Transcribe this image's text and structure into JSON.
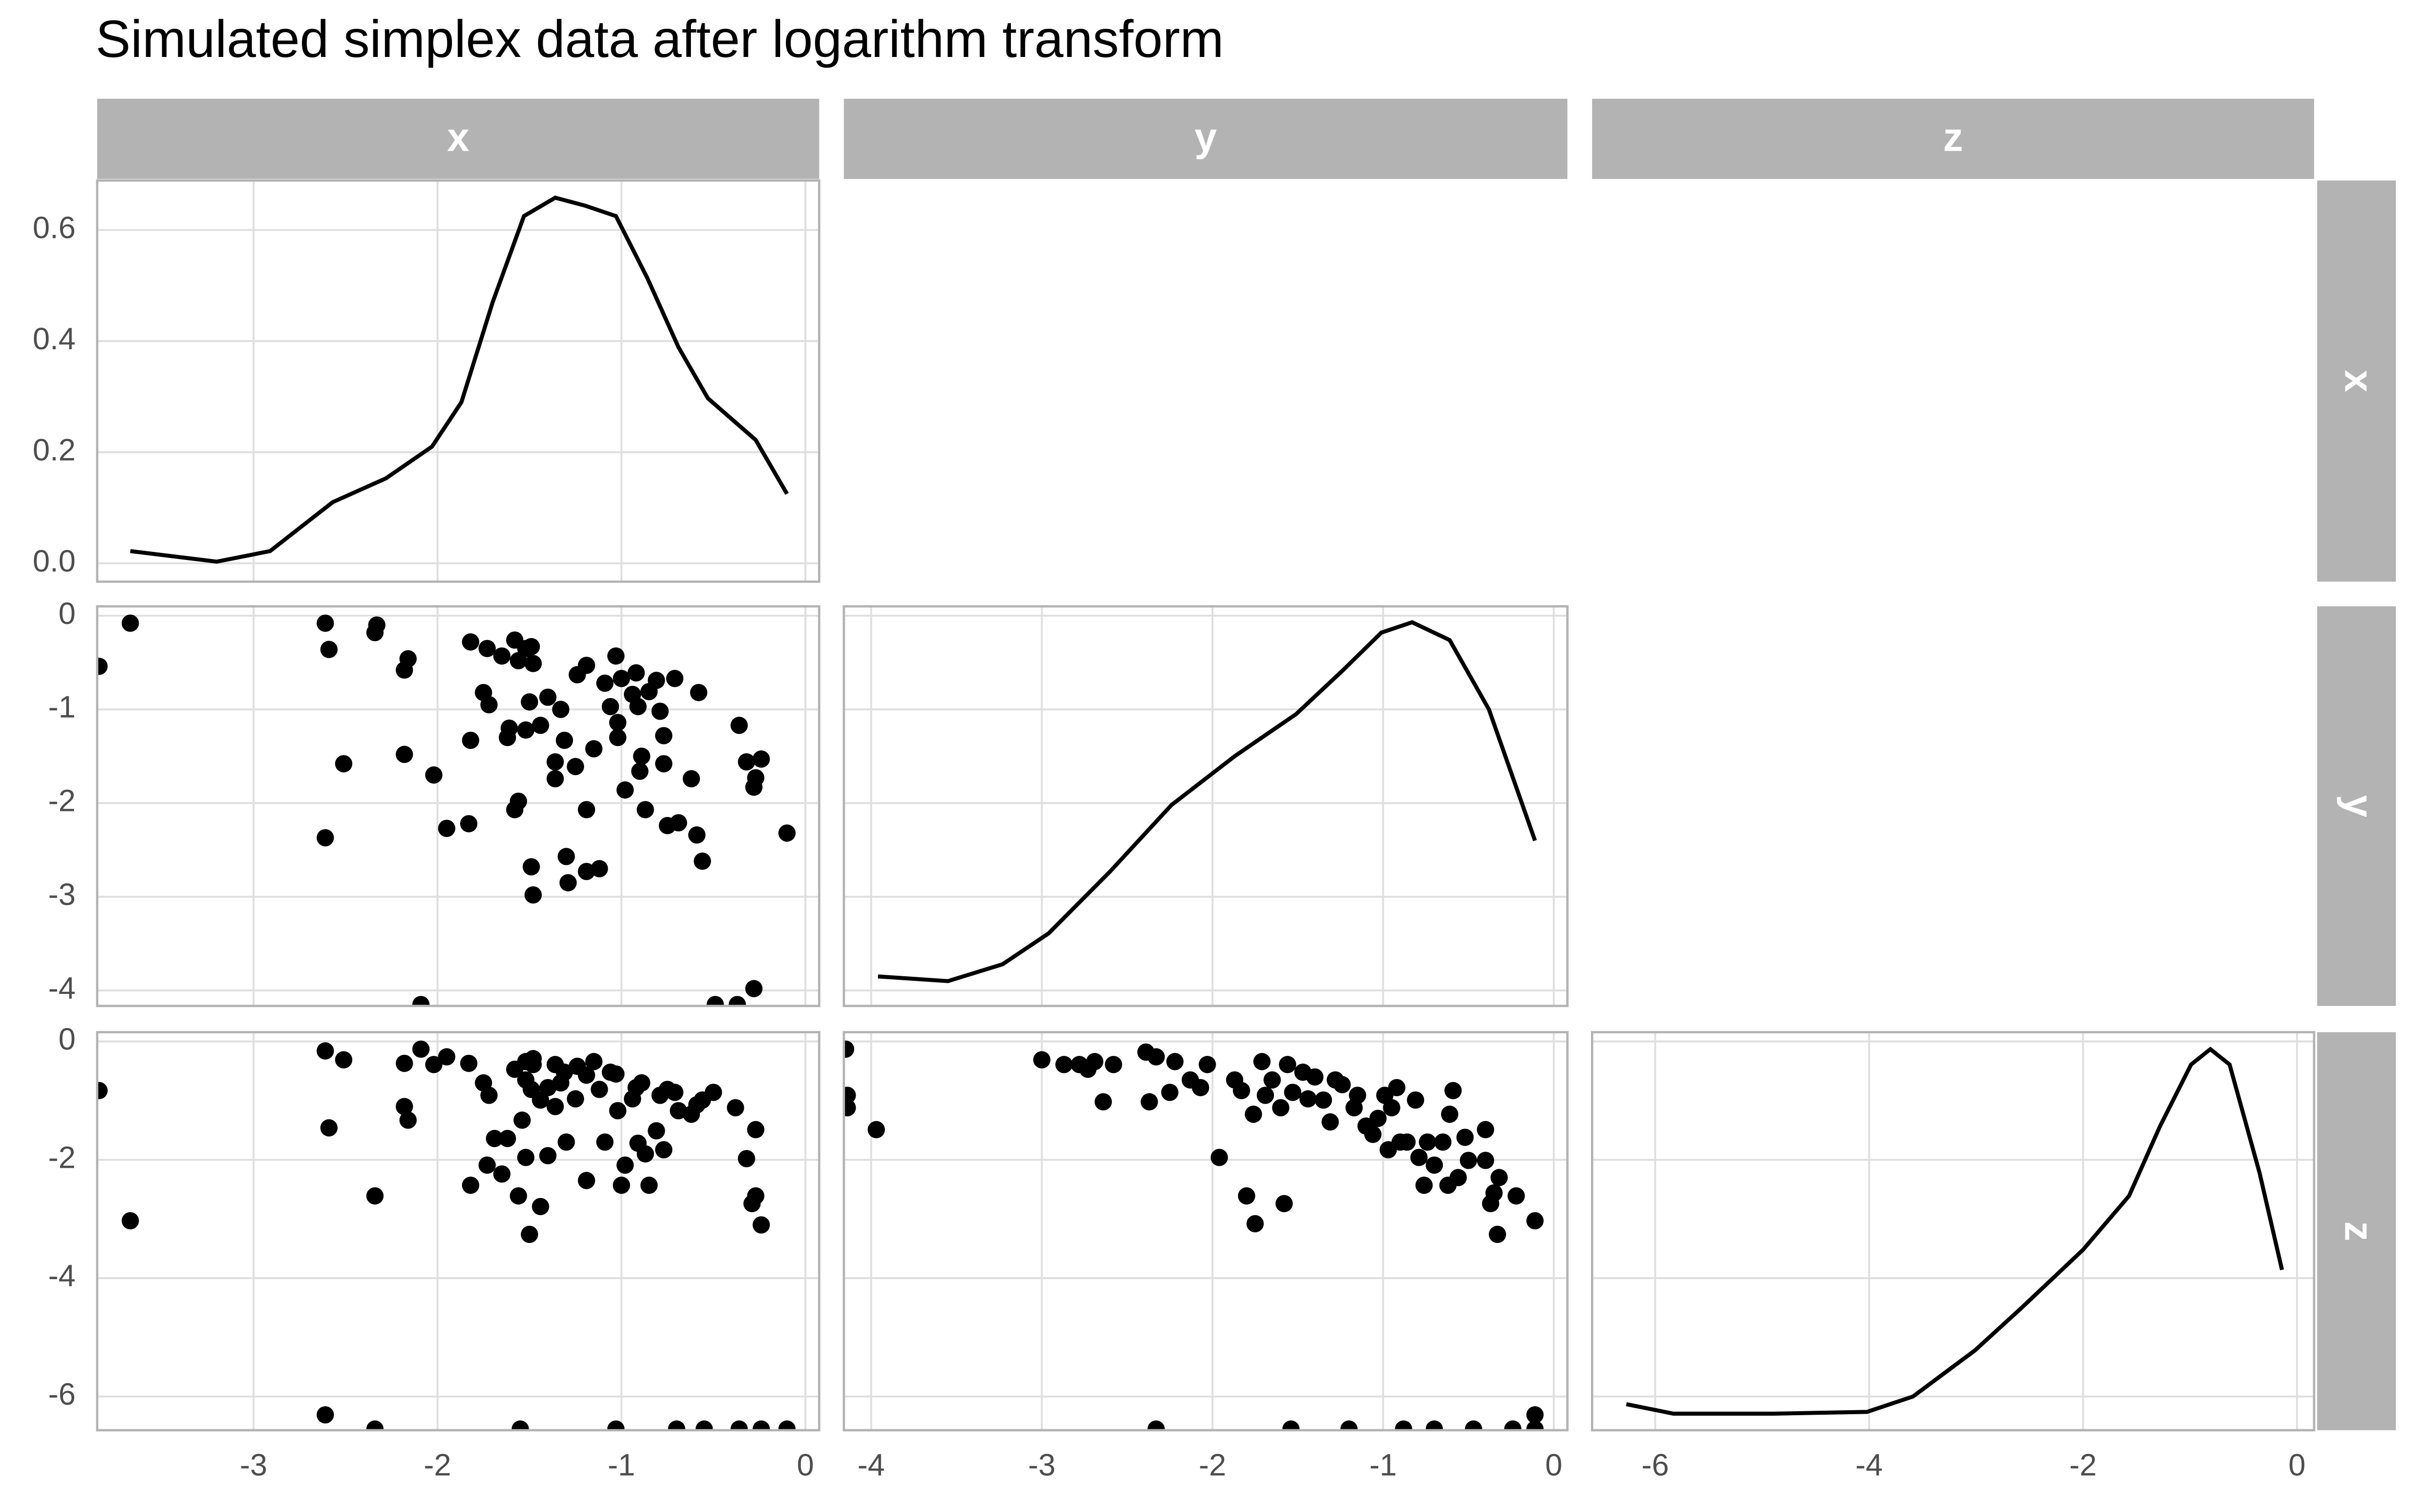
{
  "chart_data": {
    "type": "pairs",
    "title": "Simulated simplex data after logarithm transform",
    "grid": true,
    "color": "#000000",
    "strip_color": "#b3b3b3",
    "columns": [
      {
        "name": "x",
        "xlim": [
          -3.85,
          0.075
        ],
        "xticks": [
          -3,
          -2,
          -1,
          0
        ]
      },
      {
        "name": "y",
        "xlim": [
          -4.16,
          0.08
        ],
        "xticks": [
          -4,
          -3,
          -2,
          -1,
          0
        ]
      },
      {
        "name": "z",
        "xlim": [
          -6.59,
          0.16
        ],
        "xticks": [
          -6,
          -4,
          -2,
          0
        ]
      }
    ],
    "rows": [
      {
        "name": "x",
        "ylim": [
          -0.033,
          0.689
        ],
        "yticks": [
          {
            "value": 0,
            "label": "0.0"
          },
          0.2,
          0.4,
          0.6
        ]
      },
      {
        "name": "y",
        "ylim": [
          -4.165,
          0.1
        ],
        "yticks": [
          0,
          -1,
          -2,
          -3,
          -4
        ]
      },
      {
        "name": "z",
        "ylim": [
          -6.57,
          0.157
        ],
        "yticks": [
          0,
          -2,
          -4,
          -6
        ]
      }
    ],
    "panels": [
      {
        "type": "line",
        "x": [
          -3.67,
          -3.2,
          -2.91,
          -2.57,
          -2.28,
          -2.03,
          -1.87,
          -1.7,
          -1.53,
          -1.36,
          -1.2,
          -1.03,
          -0.86,
          -0.69,
          -0.53,
          -0.27,
          -0.1
        ],
        "y": [
          0.022,
          0.003,
          0.022,
          0.11,
          0.153,
          0.21,
          0.29,
          0.47,
          0.625,
          0.658,
          0.644,
          0.625,
          0.514,
          0.389,
          0.297,
          0.222,
          0.125
        ]
      },
      {
        "type": "scatter",
        "x": [
          -3.84,
          -3.67,
          -2.61,
          -2.59,
          -2.33,
          -2.34,
          -2.51,
          -2.61,
          -2.16,
          -2.18,
          -2.18,
          -2.02,
          -1.95,
          -1.83,
          -1.82,
          -1.82,
          -1.73,
          -1.75,
          -1.72,
          -1.65,
          -1.61,
          -1.62,
          -1.58,
          -1.56,
          -1.52,
          -1.52,
          -1.56,
          -1.58,
          -1.49,
          -1.48,
          -1.49,
          -1.48,
          -1.5,
          -1.44,
          -1.4,
          -1.36,
          -1.36,
          -1.33,
          -1.31,
          -1.3,
          -1.29,
          -1.24,
          -1.25,
          -1.19,
          -1.19,
          -1.19,
          -1.12,
          -1.15,
          -1.09,
          -1.06,
          -1.02,
          -1.02,
          -1.03,
          -1.0,
          -0.98,
          -0.94,
          -0.92,
          -0.91,
          -0.9,
          -0.89,
          -0.87,
          -0.85,
          -0.81,
          -0.79,
          -0.77,
          -0.77,
          -0.75,
          -0.71,
          -0.69,
          -0.62,
          -0.59,
          -0.58,
          -0.56,
          -0.36,
          -0.32,
          -0.28,
          -0.27,
          -0.24,
          -0.1,
          -0.28,
          -2.09,
          -0.49,
          -0.37
        ],
        "y": [
          -0.54,
          -0.08,
          -0.08,
          -0.36,
          -0.1,
          -0.18,
          -1.58,
          -2.37,
          -0.46,
          -0.58,
          -1.48,
          -1.7,
          -2.27,
          -2.22,
          -1.33,
          -0.28,
          -0.35,
          -0.82,
          -0.95,
          -0.43,
          -1.2,
          -1.3,
          -0.26,
          -0.48,
          -0.35,
          -1.22,
          -1.98,
          -2.07,
          -0.33,
          -0.51,
          -2.68,
          -2.98,
          -0.92,
          -1.17,
          -0.87,
          -1.56,
          -1.74,
          -1.0,
          -1.33,
          -2.57,
          -2.85,
          -0.63,
          -1.61,
          -0.53,
          -2.07,
          -2.73,
          -2.7,
          -1.42,
          -0.72,
          -0.97,
          -1.14,
          -1.3,
          -0.43,
          -0.67,
          -1.86,
          -0.84,
          -0.61,
          -0.97,
          -1.66,
          -1.5,
          -2.07,
          -0.81,
          -0.69,
          -1.02,
          -1.28,
          -1.58,
          -2.24,
          -0.67,
          -2.21,
          -1.74,
          -2.34,
          -0.82,
          -2.62,
          -1.17,
          -1.56,
          -1.83,
          -1.73,
          -1.53,
          -2.32,
          -3.98,
          -4.15,
          -4.15,
          -4.15
        ]
      },
      {
        "type": "line",
        "x": [
          -3.96,
          -3.55,
          -3.23,
          -2.96,
          -2.6,
          -2.24,
          -1.87,
          -1.51,
          -1.24,
          -1.01,
          -0.83,
          -0.61,
          -0.38,
          -0.11
        ],
        "y": [
          -3.85,
          -3.9,
          -3.72,
          -3.39,
          -2.73,
          -2.02,
          -1.5,
          -1.05,
          -0.59,
          -0.18,
          -0.07,
          -0.26,
          -1.0,
          -2.4
        ]
      },
      {
        "type": "scatter",
        "x": [
          -3.84,
          -3.67,
          -2.61,
          -2.59,
          -2.51,
          -2.34,
          -2.61,
          -2.18,
          -2.18,
          -2.16,
          -2.09,
          -2.02,
          -1.95,
          -1.83,
          -1.82,
          -1.75,
          -1.72,
          -1.73,
          -1.69,
          -1.65,
          -1.62,
          -1.58,
          -1.56,
          -1.52,
          -1.52,
          -1.54,
          -1.52,
          -1.49,
          -1.48,
          -1.48,
          -1.5,
          -1.44,
          -1.44,
          -1.4,
          -1.4,
          -1.36,
          -1.36,
          -1.33,
          -1.31,
          -1.3,
          -1.25,
          -1.24,
          -1.19,
          -1.19,
          -1.15,
          -1.12,
          -1.09,
          -1.06,
          -1.03,
          -1.02,
          -1.0,
          -0.98,
          -0.94,
          -0.92,
          -0.91,
          -0.89,
          -0.87,
          -0.85,
          -0.81,
          -0.79,
          -0.77,
          -0.75,
          -0.71,
          -0.69,
          -0.62,
          -0.59,
          -0.56,
          -0.5,
          -0.38,
          -0.32,
          -0.29,
          -0.27,
          -0.27,
          -0.24,
          -2.34,
          -1.55,
          -1.03,
          -0.7,
          -0.55,
          -0.36,
          -0.24,
          -0.1
        ],
        "y": [
          -0.83,
          -3.03,
          -0.16,
          -1.46,
          -0.31,
          -2.61,
          -6.31,
          -0.37,
          -1.1,
          -1.33,
          -0.13,
          -0.39,
          -0.26,
          -0.37,
          -2.43,
          -0.7,
          -0.91,
          -2.09,
          -1.64,
          -2.24,
          -1.64,
          -0.47,
          -2.61,
          -0.34,
          -0.65,
          -1.33,
          -1.96,
          -0.81,
          -0.39,
          -0.29,
          -3.26,
          -2.79,
          -0.99,
          -0.78,
          -1.93,
          -0.39,
          -1.1,
          -0.7,
          -0.52,
          -1.7,
          -0.97,
          -0.42,
          -0.57,
          -2.35,
          -0.34,
          -0.81,
          -1.7,
          -0.52,
          -0.55,
          -1.17,
          -2.43,
          -2.09,
          -0.97,
          -0.78,
          -1.72,
          -0.7,
          -1.9,
          -2.43,
          -1.51,
          -0.91,
          -1.83,
          -0.81,
          -0.86,
          -1.17,
          -1.23,
          -1.07,
          -0.99,
          -0.86,
          -1.12,
          -1.98,
          -2.74,
          -2.61,
          -1.49,
          -3.1,
          -6.55,
          -6.55,
          -6.55,
          -6.55,
          -6.55,
          -6.55,
          -6.55,
          -6.55
        ]
      },
      {
        "type": "scatter",
        "x": [
          -4.15,
          -4.14,
          -4.14,
          -3.97,
          -3.0,
          -2.87,
          -2.78,
          -2.73,
          -2.69,
          -2.64,
          -2.58,
          -2.39,
          -2.37,
          -2.33,
          -2.25,
          -2.22,
          -2.13,
          -2.07,
          -2.03,
          -1.96,
          -1.87,
          -1.83,
          -1.8,
          -1.76,
          -1.75,
          -1.71,
          -1.69,
          -1.65,
          -1.6,
          -1.58,
          -1.56,
          -1.53,
          -1.47,
          -1.44,
          -1.4,
          -1.35,
          -1.31,
          -1.28,
          -1.24,
          -1.17,
          -1.15,
          -1.1,
          -1.06,
          -1.03,
          -0.99,
          -0.97,
          -0.95,
          -0.92,
          -0.9,
          -0.86,
          -0.81,
          -0.79,
          -0.76,
          -0.74,
          -0.7,
          -0.65,
          -0.62,
          -0.61,
          -0.59,
          -0.56,
          -0.52,
          -0.5,
          -0.4,
          -0.4,
          -0.37,
          -0.35,
          -0.33,
          -0.32,
          -0.22,
          -0.11,
          -0.11,
          -2.33,
          -1.54,
          -1.2,
          -0.88,
          -0.7,
          -0.47,
          -0.24,
          -0.11
        ],
        "y": [
          -0.13,
          -0.91,
          -1.12,
          -1.49,
          -0.31,
          -0.39,
          -0.39,
          -0.47,
          -0.34,
          -1.02,
          -0.39,
          -0.18,
          -1.02,
          -0.26,
          -0.86,
          -0.34,
          -0.65,
          -0.78,
          -0.39,
          -1.96,
          -0.65,
          -0.83,
          -2.61,
          -1.23,
          -3.08,
          -0.34,
          -0.91,
          -0.65,
          -1.12,
          -2.74,
          -0.39,
          -0.86,
          -0.52,
          -0.97,
          -0.6,
          -0.99,
          -1.36,
          -0.65,
          -0.73,
          -1.12,
          -0.91,
          -1.43,
          -1.57,
          -1.3,
          -0.91,
          -1.83,
          -1.12,
          -0.78,
          -1.7,
          -1.7,
          -0.99,
          -1.96,
          -2.43,
          -1.7,
          -2.09,
          -1.7,
          -2.43,
          -1.23,
          -0.83,
          -2.3,
          -1.62,
          -2.01,
          -1.49,
          -2.01,
          -2.74,
          -2.56,
          -3.26,
          -2.3,
          -2.61,
          -6.31,
          -3.03,
          -6.55,
          -6.55,
          -6.55,
          -6.55,
          -6.55,
          -6.55,
          -6.55,
          -6.55
        ]
      },
      {
        "type": "line",
        "x": [
          -6.27,
          -5.83,
          -4.89,
          -4.02,
          -3.59,
          -3.01,
          -2.58,
          -2.0,
          -1.57,
          -1.28,
          -0.99,
          -0.81,
          -0.63,
          -0.35,
          -0.14
        ],
        "y": [
          -6.13,
          -6.29,
          -6.29,
          -6.26,
          -6.0,
          -5.22,
          -4.51,
          -3.52,
          -2.61,
          -1.43,
          -0.39,
          -0.13,
          -0.39,
          -2.22,
          -3.86
        ]
      }
    ]
  }
}
